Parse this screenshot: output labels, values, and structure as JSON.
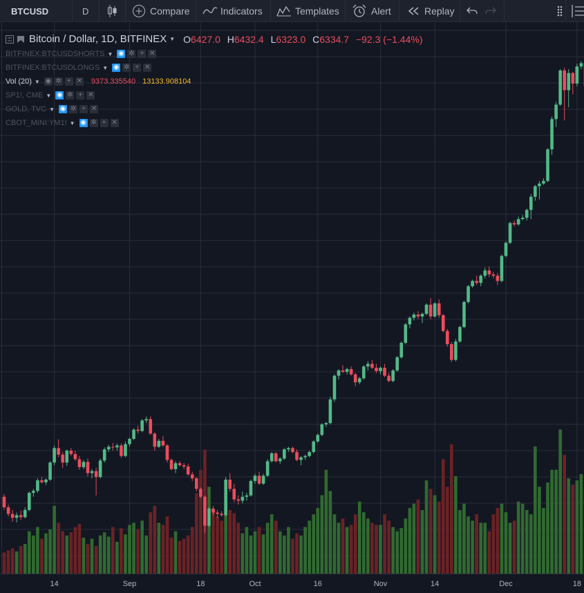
{
  "toolbar": {
    "symbol": "BTCUSD",
    "interval": "D",
    "compare": "Compare",
    "indicators": "Indicators",
    "templates": "Templates",
    "alert": "Alert",
    "replay": "Replay"
  },
  "legend": {
    "title": "Bitcoin / Dollar, 1D, BITFINEX",
    "o_label": "O",
    "o_value": "6427.0",
    "h_label": "H",
    "h_value": "6432.4",
    "l_label": "L",
    "l_value": "6323.0",
    "c_label": "C",
    "c_value": "6334.7",
    "change": "−92.3 (−1.44%)",
    "studies": [
      {
        "name": "BITFINEX:BTCUSDSHORTS"
      },
      {
        "name": "BITFINEX:BTCUSDLONGS"
      },
      {
        "name": "Vol (20)",
        "v1": "9373.335540",
        "v2": "13133.908104"
      },
      {
        "name": "SP1!, CME"
      },
      {
        "name": "GOLD, TVC"
      },
      {
        "name": "CBOT_MINI:YM1!"
      }
    ]
  },
  "colors": {
    "background": "#131722",
    "up": "#53b987",
    "down": "#eb4d5c",
    "vol_up": "#306a30",
    "vol_down": "#6b2225",
    "grid": "#2a2e39"
  },
  "chart_data": {
    "type": "candlestick",
    "symbol": "BTCUSD",
    "exchange": "BITFINEX",
    "interval": "1D",
    "x_tick_labels": [
      "14",
      "Sep",
      "18",
      "Oct",
      "16",
      "Nov",
      "14",
      "Dec",
      "18"
    ],
    "series": [
      {
        "name": "Bitcoin / Dollar",
        "type": "candlestick",
        "candles": [
          [
            6680,
            6720,
            6480,
            6520
          ],
          [
            6520,
            6560,
            6380,
            6420
          ],
          [
            6420,
            6480,
            6300,
            6360
          ],
          [
            6360,
            6440,
            6290,
            6400
          ],
          [
            6400,
            6470,
            6330,
            6370
          ],
          [
            6370,
            6520,
            6350,
            6480
          ],
          [
            6480,
            6760,
            6460,
            6740
          ],
          [
            6740,
            6800,
            6680,
            6770
          ],
          [
            6770,
            6960,
            6740,
            6930
          ],
          [
            6930,
            6980,
            6880,
            6900
          ],
          [
            6900,
            6960,
            6860,
            6940
          ],
          [
            6940,
            7220,
            6920,
            7200
          ],
          [
            7200,
            7460,
            7160,
            7420
          ],
          [
            7420,
            7550,
            7280,
            7320
          ],
          [
            7320,
            7360,
            7120,
            7200
          ],
          [
            7200,
            7400,
            7150,
            7380
          ],
          [
            7380,
            7420,
            7300,
            7330
          ],
          [
            7330,
            7380,
            7230,
            7250
          ],
          [
            7250,
            7300,
            7090,
            7130
          ],
          [
            7130,
            7240,
            7100,
            7210
          ],
          [
            7210,
            7260,
            6990,
            7040
          ],
          [
            7040,
            7100,
            6960,
            7070
          ],
          [
            7070,
            7120,
            6700,
            6980
          ],
          [
            6980,
            7260,
            6960,
            7230
          ],
          [
            7230,
            7430,
            7200,
            7400
          ],
          [
            7400,
            7470,
            7360,
            7440
          ],
          [
            7440,
            7500,
            7380,
            7430
          ],
          [
            7430,
            7490,
            7380,
            7460
          ],
          [
            7460,
            7490,
            7270,
            7300
          ],
          [
            7300,
            7520,
            7280,
            7480
          ],
          [
            7480,
            7580,
            7440,
            7560
          ],
          [
            7560,
            7720,
            7540,
            7700
          ],
          [
            7700,
            7760,
            7640,
            7680
          ],
          [
            7680,
            7860,
            7660,
            7840
          ],
          [
            7840,
            7900,
            7800,
            7860
          ],
          [
            7860,
            7900,
            7620,
            7640
          ],
          [
            7640,
            7660,
            7380,
            7440
          ],
          [
            7440,
            7560,
            7420,
            7530
          ],
          [
            7530,
            7600,
            7440,
            7460
          ],
          [
            7460,
            7480,
            7200,
            7240
          ],
          [
            7240,
            7260,
            7080,
            7100
          ],
          [
            7100,
            7220,
            7040,
            7190
          ],
          [
            7190,
            7220,
            7140,
            7160
          ],
          [
            7160,
            7190,
            7100,
            7140
          ],
          [
            7140,
            7180,
            7000,
            7020
          ],
          [
            7020,
            7060,
            6920,
            6960
          ],
          [
            6960,
            6980,
            6760,
            6800
          ],
          [
            6800,
            6820,
            6660,
            6680
          ],
          [
            6680,
            6700,
            6130,
            6240
          ],
          [
            6240,
            6520,
            6220,
            6500
          ],
          [
            6500,
            6540,
            6400,
            6440
          ],
          [
            6440,
            6480,
            6360,
            6420
          ],
          [
            6420,
            6460,
            6380,
            6400
          ],
          [
            6400,
            6980,
            6380,
            6940
          ],
          [
            6940,
            7040,
            6760,
            6800
          ],
          [
            6800,
            6880,
            6600,
            6640
          ],
          [
            6640,
            6700,
            6560,
            6620
          ],
          [
            6620,
            6760,
            6580,
            6680
          ],
          [
            6680,
            6740,
            6620,
            6700
          ],
          [
            6700,
            6940,
            6680,
            6920
          ],
          [
            6920,
            7030,
            6880,
            7000
          ],
          [
            7000,
            7060,
            6860,
            6880
          ],
          [
            6880,
            7030,
            6860,
            7000
          ],
          [
            7000,
            7250,
            6980,
            7220
          ],
          [
            7220,
            7360,
            7200,
            7340
          ],
          [
            7340,
            7360,
            7200,
            7220
          ],
          [
            7220,
            7280,
            7180,
            7260
          ],
          [
            7260,
            7420,
            7240,
            7400
          ],
          [
            7400,
            7440,
            7360,
            7420
          ],
          [
            7420,
            7440,
            7340,
            7360
          ],
          [
            7360,
            7400,
            7220,
            7240
          ],
          [
            7240,
            7300,
            7160,
            7280
          ],
          [
            7280,
            7320,
            7240,
            7300
          ],
          [
            7300,
            7380,
            7280,
            7360
          ],
          [
            7360,
            7540,
            7340,
            7520
          ],
          [
            7520,
            7640,
            7500,
            7620
          ],
          [
            7620,
            7800,
            7600,
            7780
          ],
          [
            7780,
            7820,
            7740,
            7800
          ],
          [
            7800,
            8200,
            7780,
            8160
          ],
          [
            8160,
            8540,
            8120,
            8520
          ],
          [
            8520,
            8620,
            8460,
            8600
          ],
          [
            8600,
            8680,
            8560,
            8580
          ],
          [
            8580,
            8640,
            8540,
            8620
          ],
          [
            8620,
            8660,
            8520,
            8540
          ],
          [
            8540,
            8560,
            8360,
            8420
          ],
          [
            8420,
            8500,
            8390,
            8480
          ],
          [
            8480,
            8680,
            8460,
            8660
          ],
          [
            8660,
            8740,
            8600,
            8700
          ],
          [
            8700,
            8760,
            8620,
            8640
          ],
          [
            8640,
            8700,
            8560,
            8590
          ],
          [
            8590,
            8660,
            8540,
            8640
          ],
          [
            8640,
            8700,
            8500,
            8520
          ],
          [
            8520,
            8560,
            8420,
            8440
          ],
          [
            8440,
            8620,
            8420,
            8600
          ],
          [
            8600,
            8820,
            8580,
            8800
          ],
          [
            8800,
            9040,
            8780,
            9020
          ],
          [
            9020,
            9320,
            9000,
            9300
          ],
          [
            9300,
            9420,
            9240,
            9400
          ],
          [
            9400,
            9480,
            9360,
            9450
          ],
          [
            9450,
            9500,
            9380,
            9420
          ],
          [
            9420,
            9480,
            9320,
            9460
          ],
          [
            9460,
            9620,
            9440,
            9600
          ],
          [
            9600,
            9700,
            9380,
            9420
          ],
          [
            9420,
            9640,
            9400,
            9620
          ],
          [
            9620,
            9680,
            9400,
            9440
          ],
          [
            9440,
            9460,
            9180,
            9200
          ],
          [
            9200,
            9230,
            8960,
            9000
          ],
          [
            9000,
            9030,
            8730,
            8760
          ],
          [
            8760,
            9080,
            8740,
            9040
          ],
          [
            9040,
            9280,
            9020,
            9260
          ],
          [
            9260,
            9660,
            9240,
            9640
          ],
          [
            9640,
            9900,
            9620,
            9880
          ],
          [
            9880,
            9980,
            9860,
            9960
          ],
          [
            9960,
            10040,
            9900,
            9930
          ],
          [
            9930,
            10060,
            9880,
            10040
          ],
          [
            10040,
            10160,
            10000,
            10120
          ],
          [
            10120,
            10180,
            10020,
            10060
          ],
          [
            10060,
            10100,
            10000,
            10040
          ],
          [
            10040,
            10080,
            9900,
            9960
          ],
          [
            9960,
            10360,
            9940,
            10340
          ],
          [
            10340,
            10560,
            10320,
            10540
          ],
          [
            10540,
            10860,
            10520,
            10840
          ],
          [
            10840,
            10880,
            10790,
            10820
          ],
          [
            10820,
            10940,
            10800,
            10900
          ],
          [
            10900,
            10960,
            10880,
            10920
          ],
          [
            10920,
            11060,
            10880,
            11040
          ],
          [
            11040,
            11280,
            10900,
            11240
          ],
          [
            11240,
            11420,
            11180,
            11400
          ],
          [
            11400,
            11480,
            11200,
            11440
          ],
          [
            11440,
            11520,
            11420,
            11480
          ],
          [
            11480,
            11980,
            11460,
            11960
          ],
          [
            11960,
            12460,
            11880,
            12420
          ],
          [
            12420,
            12680,
            12300,
            12640
          ],
          [
            12640,
            13180,
            12620,
            13160
          ],
          [
            13160,
            13200,
            12400,
            12860
          ],
          [
            12860,
            13180,
            12600,
            13120
          ],
          [
            13120,
            13140,
            12800,
            12960
          ],
          [
            12960,
            13260,
            12920,
            13220
          ],
          [
            13220,
            13300,
            13180,
            13270
          ],
          [
            13270,
            13290,
            12880,
            12920
          ],
          [
            12920,
            13220,
            12900,
            13180
          ],
          [
            13180,
            13460,
            13160,
            13440
          ],
          [
            13440,
            13560,
            13400,
            13420
          ],
          [
            13420,
            13440,
            13260,
            13380
          ],
          [
            13380,
            13410,
            13040,
            13120
          ]
        ]
      },
      {
        "name": "Vol (20)",
        "type": "volume",
        "values": [
          20,
          22,
          24,
          21,
          26,
          28,
          40,
          36,
          44,
          33,
          38,
          42,
          64,
          48,
          40,
          36,
          39,
          44,
          47,
          34,
          28,
          33,
          26,
          36,
          39,
          35,
          44,
          30,
          43,
          37,
          46,
          48,
          42,
          50,
          36,
          58,
          64,
          48,
          46,
          54,
          34,
          40,
          31,
          33,
          36,
          44,
          76,
          98,
          117,
          82,
          58,
          54,
          50,
          62,
          60,
          57,
          48,
          38,
          44,
          36,
          40,
          44,
          37,
          48,
          56,
          50,
          40,
          36,
          44,
          33,
          38,
          36,
          44,
          50,
          56,
          62,
          74,
          98,
          78,
          56,
          48,
          52,
          44,
          46,
          56,
          68,
          58,
          52,
          48,
          46,
          46,
          56,
          50,
          44,
          40,
          43,
          52,
          62,
          66,
          70,
          60,
          88,
          80,
          74,
          68,
          108,
          82,
          122,
          92,
          60,
          66,
          54,
          50,
          56,
          48,
          48,
          40,
          56,
          62,
          66,
          58,
          48,
          50,
          68,
          66,
          60,
          56,
          120,
          82,
          62,
          86,
          98,
          98,
          136,
          112,
          90,
          84,
          88,
          94,
          80,
          56,
          48,
          66,
          44,
          68
        ]
      }
    ],
    "grid": true
  }
}
